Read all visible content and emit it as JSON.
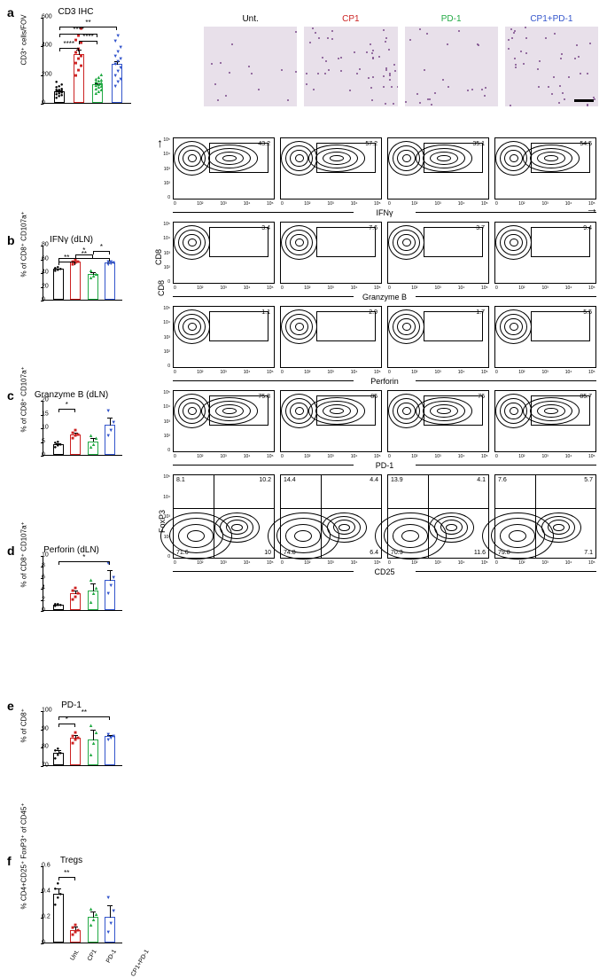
{
  "colors": {
    "unt": "#000000",
    "cp1": "#cc2222",
    "pd1": "#22aa44",
    "combo": "#3355cc",
    "ihc_bg": "#dcd4e0",
    "ihc_dots": "#7a4a8a"
  },
  "groups": [
    "Unt.",
    "CP1",
    "PD-1",
    "CP1+PD-1"
  ],
  "group_colors": [
    "#000000",
    "#cc2222",
    "#22aa44",
    "#3355cc"
  ],
  "panel_a": {
    "label": "a",
    "title": "CD3 IHC",
    "ylabel": "CD3⁺ cells/FOV",
    "ylim": [
      0,
      600
    ],
    "yticks": [
      0,
      200,
      400,
      600
    ],
    "bars": [
      {
        "mean": 80,
        "err": 15,
        "points": [
          40,
          50,
          55,
          60,
          70,
          75,
          80,
          80,
          85,
          90,
          95,
          100,
          110,
          120,
          130,
          150
        ]
      },
      {
        "mean": 340,
        "err": 35,
        "points": [
          190,
          230,
          260,
          280,
          310,
          330,
          350,
          380,
          420,
          440,
          470,
          520
        ]
      },
      {
        "mean": 130,
        "err": 15,
        "points": [
          70,
          80,
          90,
          100,
          110,
          120,
          125,
          130,
          140,
          150,
          155,
          160,
          170,
          180,
          200
        ]
      },
      {
        "mean": 270,
        "err": 30,
        "points": [
          120,
          150,
          170,
          190,
          220,
          250,
          270,
          290,
          310,
          330,
          360,
          390,
          430,
          470
        ]
      }
    ],
    "sig": [
      {
        "from": 0,
        "to": 3,
        "y": 540,
        "label": "**"
      },
      {
        "from": 0,
        "to": 2,
        "y": 490,
        "label": "****"
      },
      {
        "from": 1,
        "to": 2,
        "y": 440,
        "label": "****"
      },
      {
        "from": 0,
        "to": 1,
        "y": 390,
        "label": "****"
      }
    ],
    "ihc_labels": [
      "Unt.",
      "CP1",
      "PD-1",
      "CP1+PD-1"
    ],
    "ihc_label_colors": [
      "#000000",
      "#cc2222",
      "#22aa44",
      "#3355cc"
    ]
  },
  "panel_b": {
    "label": "b",
    "title": "IFNγ (dLN)",
    "ylabel": "% of CD8⁺\nCD107a⁺",
    "ylim": [
      0,
      80
    ],
    "yticks": [
      0,
      20,
      40,
      60,
      80
    ],
    "bars": [
      {
        "mean": 45,
        "err": 2,
        "points": [
          42,
          44,
          45,
          46,
          48
        ]
      },
      {
        "mean": 55,
        "err": 2,
        "points": [
          52,
          54,
          55,
          56,
          58
        ]
      },
      {
        "mean": 37,
        "err": 4,
        "points": [
          32,
          35,
          38,
          42
        ]
      },
      {
        "mean": 54,
        "err": 2,
        "points": [
          51,
          53,
          54,
          55,
          56
        ]
      }
    ],
    "sig": [
      {
        "from": 2,
        "to": 3,
        "y": 72,
        "label": "*"
      },
      {
        "from": 1,
        "to": 2,
        "y": 67,
        "label": "*"
      },
      {
        "from": 0,
        "to": 3,
        "y": 62,
        "label": "**"
      },
      {
        "from": 0,
        "to": 1,
        "y": 57,
        "label": "**"
      }
    ],
    "flow_values": [
      43.2,
      57.2,
      35.1,
      54.5
    ],
    "flow_xlabel": "IFNγ"
  },
  "panel_c": {
    "label": "c",
    "title": "Granzyme B (dLN)",
    "ylabel": "% of CD8⁺\nCD107a⁺",
    "ylim": [
      0,
      20
    ],
    "yticks": [
      0,
      5,
      10,
      15,
      20
    ],
    "bars": [
      {
        "mean": 4,
        "err": 0.5,
        "points": [
          3,
          3.5,
          4,
          4.5,
          5
        ]
      },
      {
        "mean": 7.5,
        "err": 1,
        "points": [
          6,
          7,
          7.5,
          8,
          9
        ]
      },
      {
        "mean": 5,
        "err": 1.5,
        "points": [
          3,
          4,
          6,
          7
        ]
      },
      {
        "mean": 11,
        "err": 3,
        "points": [
          7,
          9,
          12,
          16
        ]
      }
    ],
    "sig": [
      {
        "from": 0,
        "to": 1,
        "y": 17,
        "label": "*"
      }
    ],
    "flow_values": [
      3.4,
      7.6,
      3.7,
      9.4
    ],
    "flow_xlabel": "Granzyme B",
    "flow_ylabel": "CD8"
  },
  "panel_d": {
    "label": "d",
    "title": "Perforin (dLN)",
    "ylabel": "% of CD8⁺\nCD107a⁺",
    "ylim": [
      0,
      10
    ],
    "yticks": [
      0,
      2,
      4,
      6,
      8,
      10
    ],
    "bars": [
      {
        "mean": 1,
        "err": 0.2,
        "points": [
          0.8,
          0.9,
          1,
          1.1,
          1.2
        ]
      },
      {
        "mean": 3,
        "err": 0.7,
        "points": [
          2,
          2.5,
          3,
          3.5,
          4
        ]
      },
      {
        "mean": 3.5,
        "err": 1.5,
        "points": [
          1.5,
          3,
          4,
          5.5
        ]
      },
      {
        "mean": 5.5,
        "err": 2,
        "points": [
          3,
          4.5,
          6,
          8.5
        ]
      }
    ],
    "sig": [
      {
        "from": 0,
        "to": 3,
        "y": 9,
        "label": "*"
      }
    ],
    "flow_values": [
      1.1,
      2.9,
      1.7,
      5.5
    ],
    "flow_xlabel": "Perforin"
  },
  "panel_e": {
    "label": "e",
    "title": "PD-1",
    "ylabel": "% of CD8⁺",
    "ylim": [
      70,
      100
    ],
    "yticks": [
      70,
      80,
      90,
      100
    ],
    "bars": [
      {
        "mean": 77,
        "err": 1.5,
        "points": [
          74,
          76,
          77,
          78,
          79
        ]
      },
      {
        "mean": 85,
        "err": 2,
        "points": [
          82,
          84,
          85,
          86,
          88
        ]
      },
      {
        "mean": 84,
        "err": 6,
        "points": [
          76,
          82,
          88,
          92
        ]
      },
      {
        "mean": 86,
        "err": 1,
        "points": [
          84,
          85,
          86,
          87
        ]
      }
    ],
    "sig": [
      {
        "from": 0,
        "to": 3,
        "y": 97,
        "label": "**"
      },
      {
        "from": 0,
        "to": 1,
        "y": 93,
        "label": "*"
      }
    ],
    "flow_values": [
      75.8,
      85,
      76,
      85.7
    ],
    "flow_xlabel": "PD-1"
  },
  "panel_f": {
    "label": "f",
    "title": "Tregs",
    "ylabel": "% CD4+CD25⁺\nFoxP3⁺ of CD45⁺",
    "ylim": [
      0,
      0.6
    ],
    "yticks": [
      0,
      0.2,
      0.4,
      0.6
    ],
    "bars": [
      {
        "mean": 0.38,
        "err": 0.05,
        "points": [
          0.3,
          0.35,
          0.38,
          0.42,
          0.46
        ]
      },
      {
        "mean": 0.1,
        "err": 0.03,
        "points": [
          0.06,
          0.08,
          0.1,
          0.12,
          0.14
        ]
      },
      {
        "mean": 0.2,
        "err": 0.05,
        "points": [
          0.14,
          0.18,
          0.22,
          0.26
        ]
      },
      {
        "mean": 0.2,
        "err": 0.1,
        "points": [
          0.08,
          0.15,
          0.25,
          0.35
        ]
      }
    ],
    "sig": [
      {
        "from": 0,
        "to": 1,
        "y": 0.52,
        "label": "**"
      }
    ],
    "flow_quads": [
      {
        "tl": 8.1,
        "tr": 10.2,
        "bl": 71.6,
        "br": 10.0
      },
      {
        "tl": 14.4,
        "tr": 4.4,
        "bl": 74.8,
        "br": 6.4
      },
      {
        "tl": 13.9,
        "tr": 4.1,
        "bl": 70.3,
        "br": 11.6
      },
      {
        "tl": 7.6,
        "tr": 5.7,
        "bl": 79.8,
        "br": 7.1
      }
    ],
    "flow_xlabel": "CD25",
    "flow_ylabel": "FoxP3"
  }
}
